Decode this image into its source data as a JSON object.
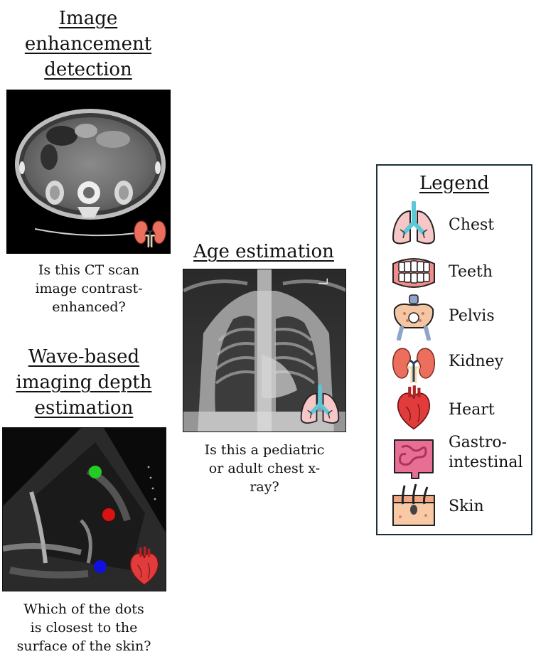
{
  "panels": {
    "enhancement": {
      "title": "Image\nenhancement\ndetection",
      "caption": "Is this CT scan\nimage contrast-\nenhanced?"
    },
    "age": {
      "title": "Age estimation",
      "caption": "Is this a pediatric\nor adult chest x-\nray?",
      "xray_marker": "L"
    },
    "depth": {
      "title": "Wave-based\nimaging depth\nestimation",
      "caption": "Which of the dots\nis closest to the\nsurface of the skin?",
      "dot_colors": [
        "#22cc22",
        "#dd1111",
        "#1111dd"
      ]
    }
  },
  "legend": {
    "title": "Legend",
    "items": [
      {
        "label": "Chest",
        "icon": "lungs-icon"
      },
      {
        "label": "Teeth",
        "icon": "teeth-icon"
      },
      {
        "label": "Pelvis",
        "icon": "pelvis-icon"
      },
      {
        "label": "Kidney",
        "icon": "kidney-icon"
      },
      {
        "label": "Heart",
        "icon": "heart-icon"
      },
      {
        "label": "Gastro-\nintestinal",
        "icon": "intestine-icon"
      },
      {
        "label": "Skin",
        "icon": "skin-icon"
      }
    ]
  }
}
